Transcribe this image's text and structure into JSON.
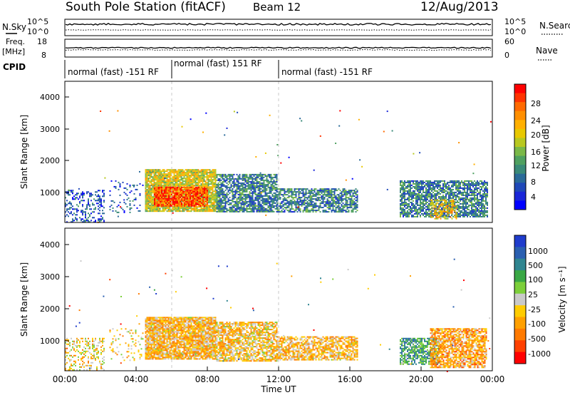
{
  "header": {
    "station": "South Pole Station (fitACF)",
    "beam": "Beam 12",
    "date": "12/Aug/2013"
  },
  "top_panels": {
    "nsky_label": "N.Sky",
    "nsky_ticks": [
      "10^5",
      "10^0"
    ],
    "nsearch_label": "N.Search",
    "nsearch_ticks": [
      "10^5",
      "10^0"
    ],
    "freq_label": "Freq.",
    "freq_unit": "[MHz]",
    "freq_ticks": [
      "18",
      "8"
    ],
    "nave_label": "Nave",
    "nave_ticks": [
      "60",
      "0"
    ],
    "cpid_label": "CPID"
  },
  "cpid_segments": [
    {
      "label": "normal (fast) -151 RF",
      "start_hour": 0.0,
      "end_hour": 6.0
    },
    {
      "label": "normal (fast) 151 RF",
      "start_hour": 6.0,
      "end_hour": 12.0
    },
    {
      "label": "normal (fast) -151 RF",
      "start_hour": 12.0,
      "end_hour": 24.0
    }
  ],
  "axes": {
    "ylabel": "Slant Range [km]",
    "xlabel": "Time UT",
    "yticks": [
      "1000",
      "2000",
      "3000",
      "4000"
    ],
    "xticks": [
      "00:00",
      "04:00",
      "08:00",
      "12:00",
      "16:00",
      "20:00",
      "00:00"
    ]
  },
  "power_colorbar": {
    "label": "Power [dB]",
    "ticks": [
      "28",
      "24",
      "20",
      "16",
      "12",
      "8",
      "4"
    ],
    "colors": [
      "#ff0000",
      "#ff3300",
      "#ff6a00",
      "#ff8f00",
      "#ffb000",
      "#e8c800",
      "#b8c820",
      "#7ab848",
      "#4fa060",
      "#3a8a78",
      "#2a6a98",
      "#1f48b8",
      "#1a26d8",
      "#0000ff"
    ]
  },
  "velocity_colorbar": {
    "label": "Velocity [m s⁻¹]",
    "ticks": [
      "1000",
      "500",
      "100",
      "25",
      "-25",
      "-100",
      "-500",
      "-1000"
    ],
    "colors": [
      "#1f3ccc",
      "#2a5fb0",
      "#2f8590",
      "#3aa845",
      "#7ccf3a",
      "#c9c9c9",
      "#ffcc00",
      "#ffa000",
      "#ff7a00",
      "#ff4000",
      "#ff0000"
    ]
  },
  "chart_data": [
    {
      "type": "heatmap",
      "title": "South Pole Station (fitACF) Beam 12 12/Aug/2013",
      "variable": "Power [dB]",
      "xlabel": "Time UT",
      "ylabel": "Slant Range [km]",
      "xlim_hours": [
        0,
        24
      ],
      "ylim_km": [
        180,
        4600
      ],
      "clim": [
        0,
        30
      ],
      "echo_regions": [
        {
          "t_start": 0.0,
          "t_end": 2.2,
          "r_min": 200,
          "r_max": 1200,
          "mean": 6,
          "density": 0.35
        },
        {
          "t_start": 2.5,
          "t_end": 4.4,
          "r_min": 500,
          "r_max": 1500,
          "mean": 6,
          "density": 0.12
        },
        {
          "t_start": 4.5,
          "t_end": 8.5,
          "r_min": 550,
          "r_max": 1850,
          "mean": 17,
          "density": 0.9
        },
        {
          "t_start": 5.0,
          "t_end": 8.0,
          "r_min": 700,
          "r_max": 1300,
          "mean": 26,
          "density": 0.9
        },
        {
          "t_start": 8.5,
          "t_end": 11.9,
          "r_min": 500,
          "r_max": 1700,
          "mean": 9,
          "density": 0.75
        },
        {
          "t_start": 11.9,
          "t_end": 16.4,
          "r_min": 500,
          "r_max": 1250,
          "mean": 9,
          "density": 0.7
        },
        {
          "t_start": 18.8,
          "t_end": 23.7,
          "r_min": 350,
          "r_max": 1500,
          "mean": 9,
          "density": 0.75
        },
        {
          "t_start": 20.5,
          "t_end": 22.0,
          "r_min": 300,
          "r_max": 900,
          "mean": 19,
          "density": 0.5
        }
      ]
    },
    {
      "type": "heatmap",
      "title": "South Pole Station (fitACF) Beam 12 12/Aug/2013",
      "variable": "Velocity [m s-1]",
      "xlabel": "Time UT",
      "ylabel": "Slant Range [km]",
      "xlim_hours": [
        0,
        24
      ],
      "ylim_km": [
        180,
        4600
      ],
      "clim": [
        -1000,
        1000
      ],
      "echo_regions": [
        {
          "t_start": 0.0,
          "t_end": 2.2,
          "r_min": 200,
          "r_max": 1200,
          "mean": -150,
          "density": 0.35
        },
        {
          "t_start": 2.5,
          "t_end": 4.4,
          "r_min": 500,
          "r_max": 1500,
          "mean": -150,
          "density": 0.12
        },
        {
          "t_start": 4.5,
          "t_end": 8.5,
          "r_min": 550,
          "r_max": 1850,
          "mean": -250,
          "density": 0.9
        },
        {
          "t_start": 8.5,
          "t_end": 11.9,
          "r_min": 500,
          "r_max": 1700,
          "mean": -200,
          "density": 0.75
        },
        {
          "t_start": 11.9,
          "t_end": 16.4,
          "r_min": 500,
          "r_max": 1250,
          "mean": -250,
          "density": 0.7
        },
        {
          "t_start": 18.8,
          "t_end": 21.0,
          "r_min": 400,
          "r_max": 1200,
          "mean": 400,
          "density": 0.75
        },
        {
          "t_start": 20.5,
          "t_end": 23.7,
          "r_min": 300,
          "r_max": 1500,
          "mean": -350,
          "density": 0.75
        }
      ]
    }
  ]
}
